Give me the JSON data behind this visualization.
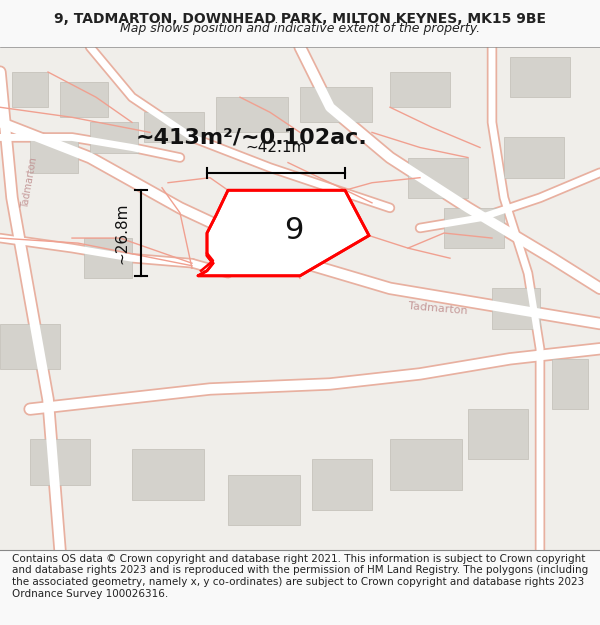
{
  "title_line1": "9, TADMARTON, DOWNHEAD PARK, MILTON KEYNES, MK15 9BE",
  "title_line2": "Map shows position and indicative extent of the property.",
  "footer_text": "Contains OS data © Crown copyright and database right 2021. This information is subject to Crown copyright and database rights 2023 and is reproduced with the permission of HM Land Registry. The polygons (including the associated geometry, namely x, y co-ordinates) are subject to Crown copyright and database rights 2023 Ordnance Survey 100026316.",
  "area_label": "~413m²/~0.102ac.",
  "number_label": "9",
  "width_label": "~42.1m",
  "height_label": "~26.8m",
  "bg_color": "#f0eeea",
  "text_color": "#222222",
  "footer_color": "#222222",
  "title_fontsize": 10,
  "subtitle_fontsize": 9,
  "area_fontsize": 16,
  "number_fontsize": 22,
  "measure_fontsize": 11,
  "footer_fontsize": 7.5
}
